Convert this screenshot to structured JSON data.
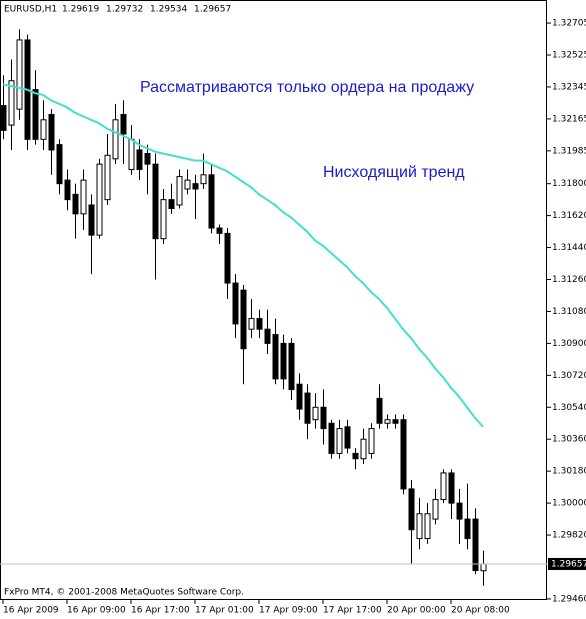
{
  "chart_data": {
    "type": "candlestick",
    "symbol": "EURUSD,H1",
    "copyright": "FxPro MT4, © 2001-2008 MetaQuotes Software Corp.",
    "annotations": [
      "Рассматриваются только ордера на продажу",
      "Нисходящий тренд"
    ],
    "annotation_color": "#1a1ad0",
    "categories": [
      "16 Apr 2009",
      null,
      null,
      null,
      null,
      null,
      null,
      null,
      "16 Apr 09:00",
      null,
      null,
      null,
      null,
      null,
      null,
      null,
      "16 Apr 17:00",
      null,
      null,
      null,
      null,
      null,
      null,
      null,
      "17 Apr 01:00",
      null,
      null,
      null,
      null,
      null,
      null,
      null,
      "17 Apr 09:00",
      null,
      null,
      null,
      null,
      null,
      null,
      null,
      "17 Apr 17:00",
      null,
      null,
      null,
      null,
      null,
      null,
      null,
      "20 Apr 00:00",
      null,
      null,
      null,
      null,
      null,
      null,
      null,
      "20 Apr 08:00",
      null,
      null,
      null,
      null
    ],
    "open": [
      1.3224,
      1.3213,
      1.3222,
      1.3261,
      1.3233,
      1.3205,
      1.3219,
      1.3202,
      1.3182,
      1.3174,
      1.3163,
      1.3168,
      1.3151,
      1.3171,
      1.3194,
      1.3219,
      1.3188,
      1.3199,
      1.3197,
      1.3191,
      1.3149,
      1.3171,
      1.3168,
      1.3177,
      1.318,
      1.318,
      1.3185,
      1.3155,
      1.3152,
      1.3124,
      1.312,
      1.3098,
      1.3104,
      1.3098,
      1.3095,
      1.309,
      1.309,
      1.3067,
      1.3062,
      1.3047,
      1.3054,
      1.3045,
      1.3028,
      1.3043,
      1.3028,
      1.3025,
      1.3028,
      1.3059,
      1.3045,
      1.3047,
      1.3047,
      1.3008,
      1.298,
      1.298,
      1.2991,
      1.3002,
      1.3017,
      1.3,
      1.2991,
      1.2991,
      1.29619
    ],
    "high": [
      1.3241,
      1.325,
      1.3267,
      1.3264,
      1.3244,
      1.3227,
      1.3222,
      1.3205,
      1.3188,
      1.318,
      1.3188,
      1.3174,
      1.3194,
      1.3208,
      1.3225,
      1.3227,
      1.3213,
      1.3205,
      1.3202,
      1.3197,
      1.3177,
      1.318,
      1.3188,
      1.3188,
      1.3185,
      1.3197,
      1.3191,
      1.3157,
      1.3155,
      1.3129,
      1.3123,
      1.3115,
      1.3109,
      1.3109,
      1.3104,
      1.3095,
      1.3093,
      1.3073,
      1.3067,
      1.3062,
      1.3064,
      1.3047,
      1.3047,
      1.3047,
      1.3031,
      1.3042,
      1.3045,
      1.3067,
      1.305,
      1.305,
      1.305,
      1.3013,
      1.3003,
      1.3,
      1.3008,
      1.3019,
      1.3019,
      1.3008,
      1.3011,
      1.2997,
      1.29732
    ],
    "low": [
      1.3205,
      1.3199,
      1.3216,
      1.3199,
      1.3202,
      1.3199,
      1.3185,
      1.3174,
      1.3165,
      1.3149,
      1.3154,
      1.3129,
      1.3149,
      1.3168,
      1.3191,
      1.3191,
      1.3185,
      1.3182,
      1.3174,
      1.3126,
      1.3146,
      1.3163,
      1.3166,
      1.3174,
      1.316,
      1.3177,
      1.3152,
      1.3146,
      1.3115,
      1.3093,
      1.3067,
      1.3093,
      1.3093,
      1.3084,
      1.3067,
      1.3064,
      1.3058,
      1.3047,
      1.3036,
      1.3042,
      1.3033,
      1.3025,
      1.3025,
      1.3028,
      1.3019,
      1.3022,
      1.3025,
      1.3042,
      1.3042,
      1.3042,
      1.3005,
      1.2966,
      1.2974,
      1.2977,
      1.2988,
      1.3,
      1.2991,
      1.2977,
      1.2974,
      1.296,
      1.29534
    ],
    "close": [
      1.321,
      1.3238,
      1.3261,
      1.3205,
      1.3205,
      1.3216,
      1.3199,
      1.318,
      1.3171,
      1.3163,
      1.3182,
      1.3151,
      1.3191,
      1.3196,
      1.3216,
      1.3208,
      1.3205,
      1.3188,
      1.3191,
      1.3149,
      1.3171,
      1.3166,
      1.3184,
      1.3182,
      1.3177,
      1.3185,
      1.3155,
      1.3152,
      1.3124,
      1.3101,
      1.3087,
      1.3104,
      1.3098,
      1.309,
      1.307,
      1.307,
      1.3064,
      1.3053,
      1.3045,
      1.3054,
      1.3042,
      1.3028,
      1.3042,
      1.3031,
      1.3025,
      1.3036,
      1.3042,
      1.3045,
      1.3047,
      1.3045,
      1.3008,
      1.2985,
      1.2994,
      1.2994,
      1.3002,
      1.3017,
      1.3,
      1.2991,
      1.298,
      1.2962,
      1.29657
    ],
    "up_color": "#ffffff",
    "down_color": "#000000",
    "moving_average": {
      "color": "#40e0d0",
      "values": [
        1.3236,
        1.3235,
        1.3234,
        1.3233,
        1.3231,
        1.323,
        1.3227,
        1.3225,
        1.3223,
        1.322,
        1.3218,
        1.3216,
        1.3214,
        1.3211,
        1.3209,
        1.3207,
        1.3205,
        1.3202,
        1.32,
        1.3198,
        1.3197,
        1.3196,
        1.3195,
        1.3194,
        1.3193,
        1.3193,
        1.3191,
        1.3189,
        1.3187,
        1.3184,
        1.3181,
        1.3178,
        1.3174,
        1.3171,
        1.3168,
        1.3164,
        1.3161,
        1.3157,
        1.3153,
        1.3148,
        1.3145,
        1.3141,
        1.3137,
        1.3133,
        1.3128,
        1.3124,
        1.3119,
        1.3115,
        1.311,
        1.3104,
        1.3098,
        1.3093,
        1.3087,
        1.3082,
        1.3076,
        1.3071,
        1.3065,
        1.306,
        1.3054,
        1.3048,
        1.3043
      ]
    },
    "ylim": [
      1.29454,
      1.32835
    ],
    "yticks": [
      1.32705,
      1.32525,
      1.32345,
      1.32165,
      1.31985,
      {
        "value": 1.318,
        "label": "1.31800"
      },
      {
        "value": 1.3162,
        "label": "1.31620"
      },
      {
        "value": 1.3144,
        "label": "1.31440"
      },
      {
        "value": 1.3126,
        "label": "1.31260"
      },
      {
        "value": 1.3108,
        "label": "1.31080"
      },
      {
        "value": 1.309,
        "label": "1.30900"
      },
      {
        "value": 1.3072,
        "label": "1.30720"
      },
      {
        "value": 1.3054,
        "label": "1.30540"
      },
      {
        "value": 1.3036,
        "label": "1.30360"
      },
      {
        "value": 1.3018,
        "label": "1.30180"
      },
      {
        "value": 1.3,
        "label": "1.30000"
      },
      {
        "value": 1.2982,
        "label": "1.29820"
      },
      {
        "value": 1.2946,
        "label": "1.29460"
      }
    ]
  }
}
